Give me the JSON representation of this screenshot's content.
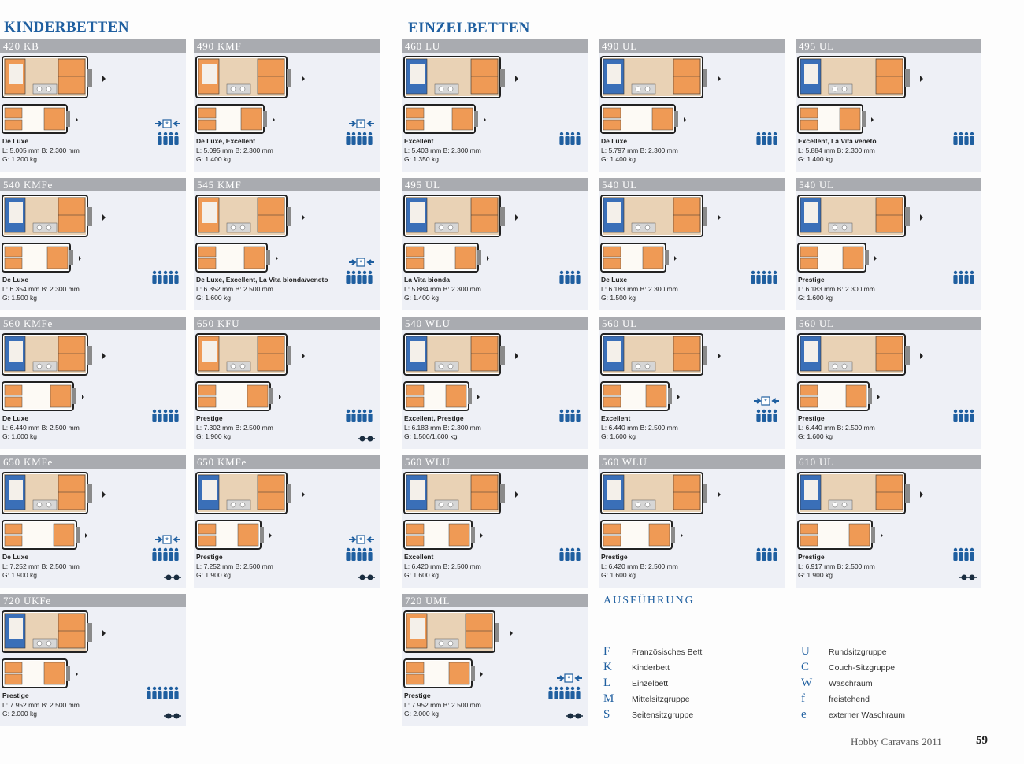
{
  "sections": {
    "kinderbetten": "KINDERBETTEN",
    "einzelbetten": "EINZELBETTEN"
  },
  "models": [
    {
      "name": "420 KB",
      "trim": "De Luxe",
      "dims": "L: 5.005 mm  B: 2.300 mm",
      "weight": "G: 1.200 kg",
      "persons": 4,
      "beds_icon": true,
      "wheels": false
    },
    {
      "name": "490 KMF",
      "trim": "De Luxe, Excellent",
      "dims": "L: 5.095 mm  B: 2.300 mm",
      "weight": "G: 1.400 kg",
      "persons": 5,
      "beds_icon": true,
      "wheels": false
    },
    {
      "name": "460 LU",
      "trim": "Excellent",
      "dims": "L: 5.403 mm  B: 2.300 mm",
      "weight": "G: 1.350 kg",
      "persons": 4,
      "beds_icon": false,
      "wheels": false
    },
    {
      "name": "490 UL",
      "trim": "De Luxe",
      "dims": "L: 5.797 mm  B: 2.300 mm",
      "weight": "G: 1.400 kg",
      "persons": 4,
      "beds_icon": false,
      "wheels": false
    },
    {
      "name": "495 UL",
      "trim": "Excellent, La Vita veneto",
      "dims": "L: 5.884 mm  B: 2.300 mm",
      "weight": "G: 1.400 kg",
      "persons": 4,
      "beds_icon": false,
      "wheels": false
    },
    {
      "name": "540 KMFe",
      "trim": "De Luxe",
      "dims": "L: 6.354 mm  B: 2.300 mm",
      "weight": "G: 1.500 kg",
      "persons": 5,
      "beds_icon": false,
      "wheels": false
    },
    {
      "name": "545 KMF",
      "trim": "De Luxe, Excellent, La Vita bionda/veneto",
      "dims": "L: 6.352 mm  B: 2.500 mm",
      "weight": "G: 1.600 kg",
      "persons": 5,
      "beds_icon": true,
      "wheels": false
    },
    {
      "name": "495 UL",
      "trim": "La Vita bionda",
      "dims": "L: 5.884 mm  B: 2.300 mm",
      "weight": "G: 1.400 kg",
      "persons": 4,
      "beds_icon": false,
      "wheels": false
    },
    {
      "name": "540 UL",
      "trim": "De Luxe",
      "dims": "L: 6.183 mm  B: 2.300 mm",
      "weight": "G: 1.500 kg",
      "persons": 5,
      "beds_icon": false,
      "wheels": false
    },
    {
      "name": "540 UL",
      "trim": "Prestige",
      "dims": "L: 6.183 mm  B: 2.300 mm",
      "weight": "G: 1.600 kg",
      "persons": 4,
      "beds_icon": false,
      "wheels": false
    },
    {
      "name": "560 KMFe",
      "trim": "De Luxe",
      "dims": "L: 6.440 mm  B: 2.500 mm",
      "weight": "G: 1.600 kg",
      "persons": 5,
      "beds_icon": false,
      "wheels": false
    },
    {
      "name": "650 KFU",
      "trim": "Prestige",
      "dims": "L: 7.302 mm  B: 2.500 mm",
      "weight": "G: 1.900 kg",
      "persons": 5,
      "beds_icon": false,
      "wheels": true
    },
    {
      "name": "540 WLU",
      "trim": "Excellent, Prestige",
      "dims": "L: 6.183 mm  B: 2.300 mm",
      "weight": "G: 1.500/1.600 kg",
      "persons": 4,
      "beds_icon": false,
      "wheels": false
    },
    {
      "name": "560 UL",
      "trim": "Excellent",
      "dims": "L: 6.440 mm  B: 2.500 mm",
      "weight": "G: 1.600 kg",
      "persons": 4,
      "beds_icon": true,
      "wheels": false
    },
    {
      "name": "560 UL",
      "trim": "Prestige",
      "dims": "L: 6.440 mm  B: 2.500 mm",
      "weight": "G: 1.600 kg",
      "persons": 4,
      "beds_icon": false,
      "wheels": false
    },
    {
      "name": "650 KMFe",
      "trim": "De Luxe",
      "dims": "L: 7.252 mm  B: 2.500 mm",
      "weight": "G: 1.900 kg",
      "persons": 5,
      "beds_icon": true,
      "wheels": true
    },
    {
      "name": "650 KMFe",
      "trim": "Prestige",
      "dims": "L: 7.252 mm  B: 2.500 mm",
      "weight": "G: 1.900 kg",
      "persons": 5,
      "beds_icon": true,
      "wheels": true
    },
    {
      "name": "560 WLU",
      "trim": "Excellent",
      "dims": "L: 6.420 mm  B: 2.500 mm",
      "weight": "G: 1.600 kg",
      "persons": 4,
      "beds_icon": false,
      "wheels": false
    },
    {
      "name": "560 WLU",
      "trim": "Prestige",
      "dims": "L: 6.420 mm  B: 2.500 mm",
      "weight": "G: 1.600 kg",
      "persons": 4,
      "beds_icon": false,
      "wheels": false
    },
    {
      "name": "610 UL",
      "trim": "Prestige",
      "dims": "L: 6.917 mm  B: 2.500 mm",
      "weight": "G: 1.900 kg",
      "persons": 4,
      "beds_icon": false,
      "wheels": true
    },
    {
      "name": "720 UKFe",
      "trim": "Prestige",
      "dims": "L: 7.952 mm  B: 2.500 mm",
      "weight": "G: 2.000 kg",
      "persons": 6,
      "beds_icon": false,
      "wheels": true
    },
    {
      "name": "720 UML",
      "trim": "Prestige",
      "dims": "L: 7.952 mm  B: 2.500 mm",
      "weight": "G: 2.000 kg",
      "persons": 6,
      "beds_icon": true,
      "wheels": true
    }
  ],
  "ausfuehrung": {
    "title": "AUSFÜHRUNG",
    "items": [
      {
        "key": "F",
        "label": "Französisches Bett"
      },
      {
        "key": "K",
        "label": "Kinderbett"
      },
      {
        "key": "L",
        "label": "Einzelbett"
      },
      {
        "key": "M",
        "label": "Mittelsitzgruppe"
      },
      {
        "key": "S",
        "label": "Seitensitzgruppe"
      },
      {
        "key": "U",
        "label": "Rundsitzgruppe"
      },
      {
        "key": "C",
        "label": "Couch-Sitzgruppe"
      },
      {
        "key": "W",
        "label": "Waschraum"
      },
      {
        "key": "f",
        "label": "freistehend"
      },
      {
        "key": "e",
        "label": "externer Waschraum"
      }
    ]
  },
  "footer": {
    "brand": "Hobby Caravans 2011",
    "page": "59"
  },
  "colors": {
    "accent": "#1f5fa0",
    "header_bar": "#a9abb0",
    "card_bg": "#eef0f6",
    "bed_orange": "#ef9a55",
    "seat_blue": "#3a6fb8",
    "floor_tan": "#e9d2b5"
  }
}
